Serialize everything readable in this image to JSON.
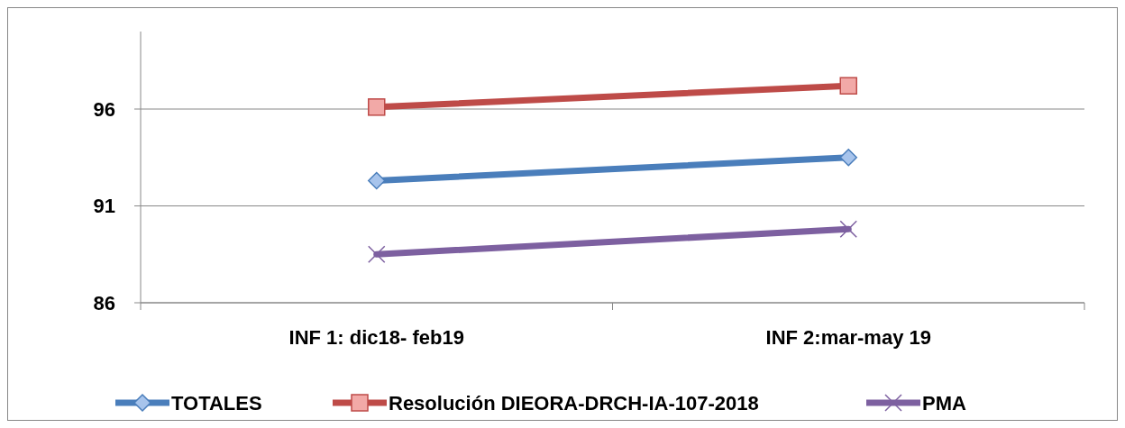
{
  "chart_data": {
    "type": "line",
    "categories": [
      "INF 1: dic18- feb19",
      "INF 2:mar-may 19"
    ],
    "series": [
      {
        "name": "TOTALES",
        "color": "#4a7ebb",
        "marker": "diamond",
        "values": [
          92.3,
          93.5
        ]
      },
      {
        "name": "Resolución DIEORA-DRCH-IA-107-2018",
        "color": "#be4b48",
        "marker": "square",
        "values": [
          96.1,
          97.2
        ]
      },
      {
        "name": "PMA",
        "color": "#7d60a0",
        "marker": "cross",
        "values": [
          88.5,
          89.8
        ]
      }
    ],
    "ylim": [
      86,
      100
    ],
    "yticks": [
      86,
      91,
      96
    ],
    "grid": "y",
    "legend": "bottom"
  }
}
